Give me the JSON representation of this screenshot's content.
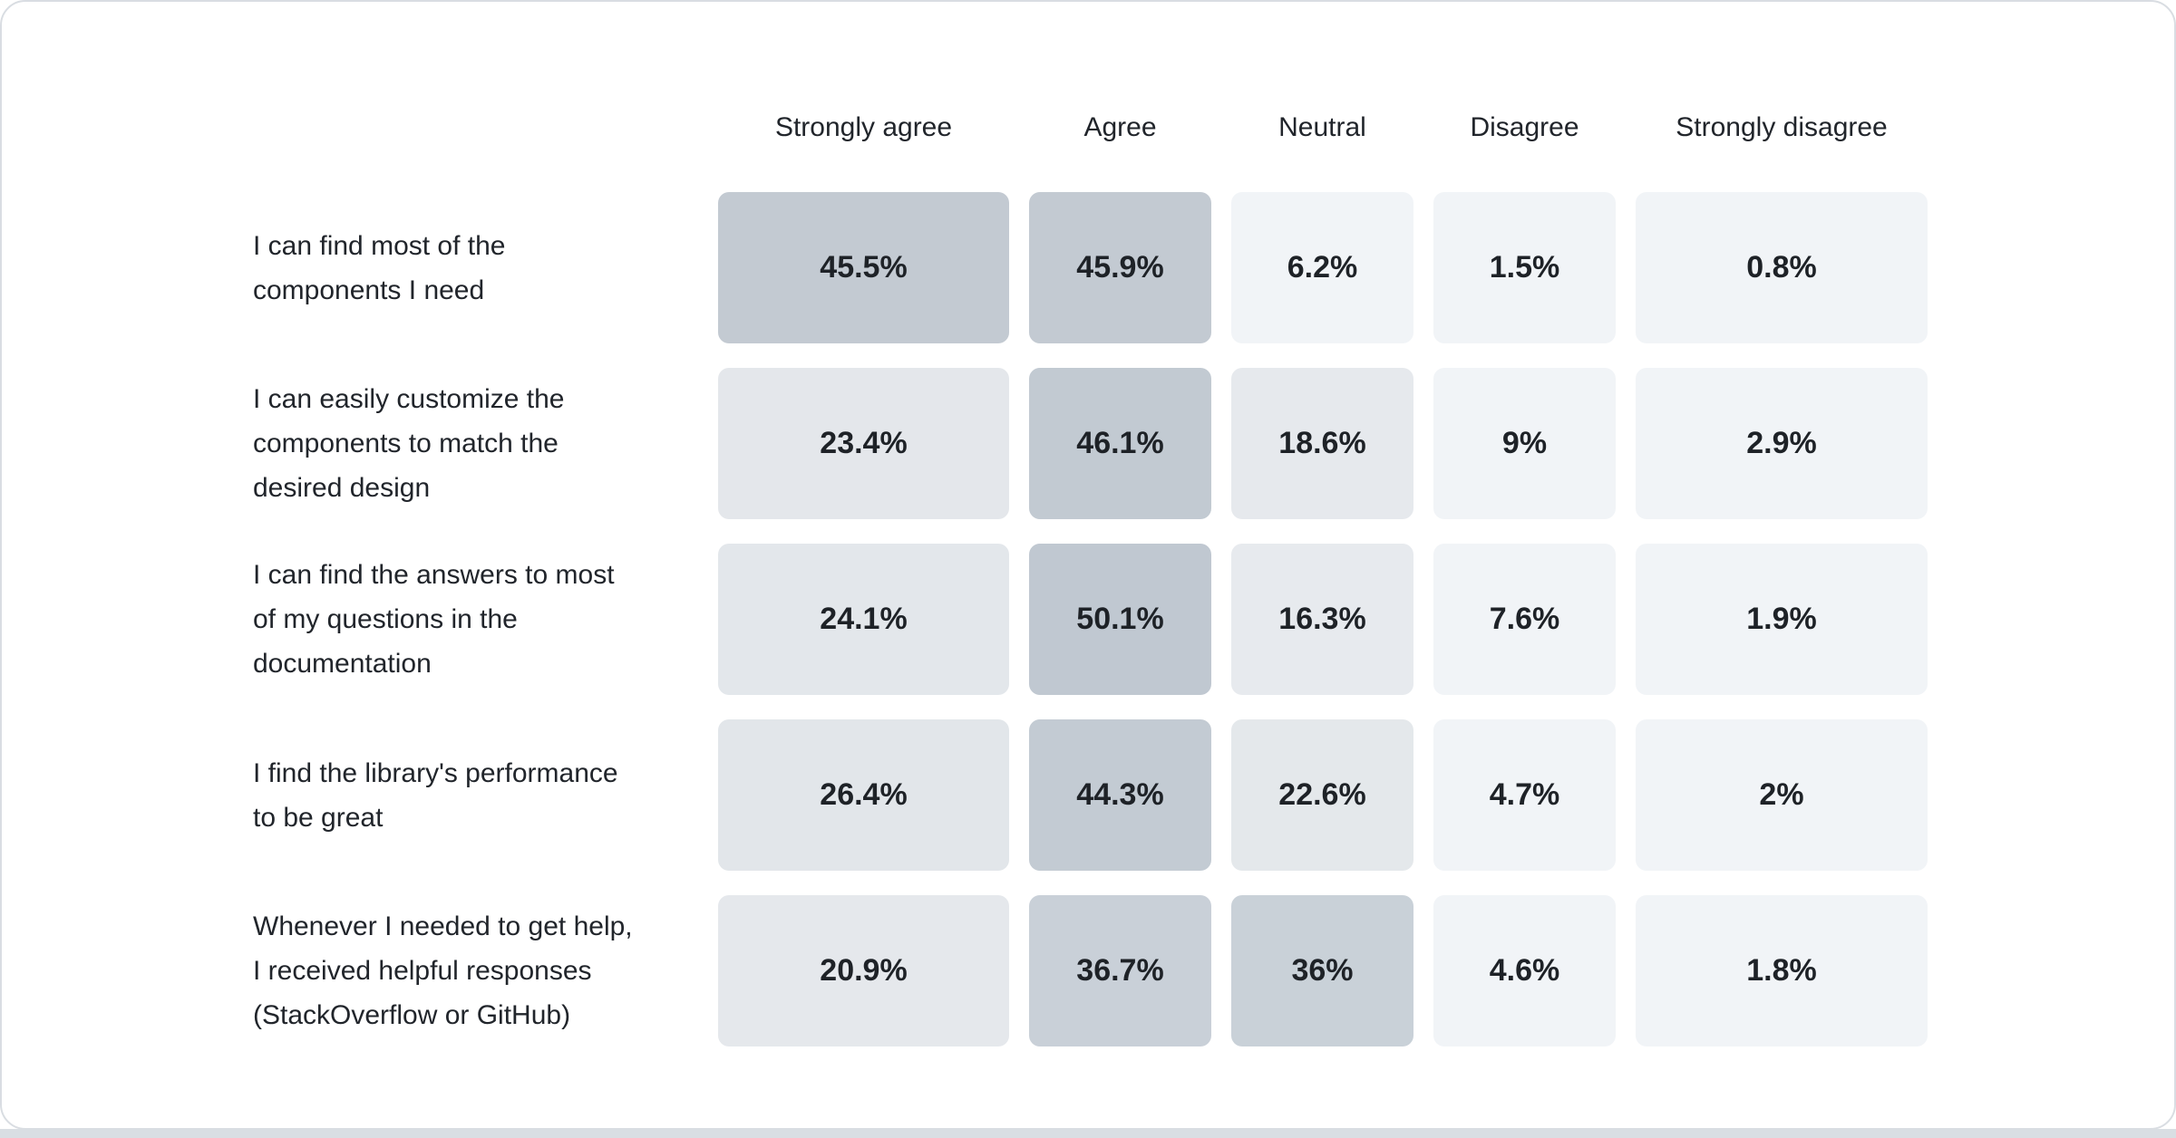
{
  "page": {
    "background_color": "#ffffff",
    "card_border_color": "#d9dde2",
    "bottom_strip_color": "#d9dee3",
    "header_text_color": "#21252b",
    "label_text_color": "#21252b",
    "value_text_color": "#1e2227"
  },
  "chart_data": {
    "type": "heatmap",
    "unit": "%",
    "value_suffix": "%",
    "legend": "none",
    "grid": "off",
    "columns": [
      "Strongly agree",
      "Agree",
      "Neutral",
      "Disagree",
      "Strongly disagree"
    ],
    "rows": [
      {
        "label": "I can find most of the components I need",
        "label_lines": [
          "I can find most of the",
          "components I need"
        ],
        "values": [
          45.5,
          45.9,
          6.2,
          1.5,
          0.8
        ],
        "cell_colors": [
          "#c3cad2",
          "#c3cad2",
          "#f1f4f7",
          "#f1f4f7",
          "#f1f4f7"
        ]
      },
      {
        "label": "I can easily customize the components to match the desired design",
        "label_lines": [
          "I can easily customize the",
          "components to match the",
          "desired design"
        ],
        "values": [
          23.4,
          46.1,
          18.6,
          9,
          2.9
        ],
        "cell_colors": [
          "#e4e7eb",
          "#c2cad2",
          "#e6e9ed",
          "#f1f4f7",
          "#f1f4f7"
        ]
      },
      {
        "label": "I can find the answers to most of my questions in the documentation",
        "label_lines": [
          "I can find the answers to most",
          "of my questions in the",
          "documentation"
        ],
        "values": [
          24.1,
          50.1,
          16.3,
          7.6,
          1.9
        ],
        "cell_colors": [
          "#e3e7eb",
          "#c0c8d1",
          "#e7eaee",
          "#f1f4f7",
          "#f1f4f7"
        ]
      },
      {
        "label": "I find the library's performance to be great",
        "label_lines": [
          "I find the library's performance",
          "to be great"
        ],
        "values": [
          26.4,
          44.3,
          22.6,
          4.7,
          2
        ],
        "cell_colors": [
          "#e2e6ea",
          "#c3cbd3",
          "#e4e8eb",
          "#f1f4f7",
          "#f1f4f7"
        ]
      },
      {
        "label": "Whenever I needed to get help, I received helpful responses (StackOverflow or GitHub)",
        "label_lines": [
          "Whenever I needed to get help,",
          "I received helpful responses",
          "(StackOverflow or GitHub)"
        ],
        "values": [
          20.9,
          36.7,
          36,
          4.6,
          1.8
        ],
        "cell_colors": [
          "#e5e8ec",
          "#c9d0d8",
          "#c9d1d8",
          "#f1f4f7",
          "#f1f4f7"
        ]
      }
    ]
  }
}
